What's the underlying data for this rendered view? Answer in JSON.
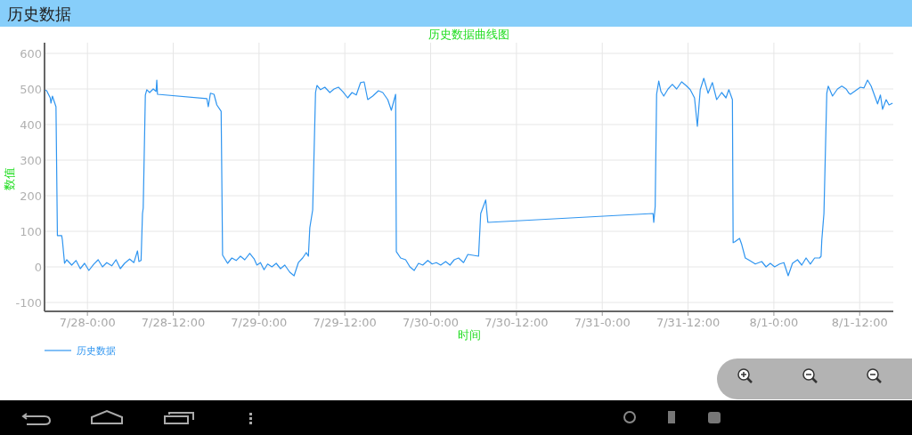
{
  "chart_data": {
    "type": "line",
    "title": "历史数据曲线图",
    "xlabel": "时间",
    "ylabel": "数值",
    "annotations": [
      "历史数据"
    ],
    "xlim": [
      "--07-27T18:00",
      "--08-01T16:42"
    ],
    "ylim": [
      -125,
      630
    ],
    "xticks": [
      {
        "value": "--07-28T00:00",
        "label": "7/28-0:00"
      },
      {
        "value": "--07-28T12:00",
        "label": "7/28-12:00"
      },
      {
        "value": "--07-29T00:00",
        "label": "7/29-0:00"
      },
      {
        "value": "--07-29T12:00",
        "label": "7/29-12:00"
      },
      {
        "value": "--07-30T00:00",
        "label": "7/30-0:00"
      },
      {
        "value": "--07-30T12:00",
        "label": "7/30-12:00"
      },
      {
        "value": "--07-31T00:00",
        "label": "7/31-0:00"
      },
      {
        "value": "--07-31T12:00",
        "label": "7/31-12:00"
      },
      {
        "value": "--08-01T00:00",
        "label": "8/1-0:00"
      },
      {
        "value": "--08-01T12:00",
        "label": "8/1-12:00"
      }
    ],
    "yticks": [
      -100,
      0,
      100,
      200,
      300,
      400,
      500,
      600
    ],
    "grid": true,
    "legend": "bottom left",
    "series": [
      {
        "name": "历史数据",
        "color": "#2f95f0",
        "x": [
          "--07-27T18:06",
          "--07-27T18:18",
          "--07-27T18:48",
          "--07-27T18:54",
          "--07-27T19:06",
          "--07-27T19:36",
          "--07-27T19:48",
          "--07-27T20:24",
          "--07-27T20:30",
          "--07-27T20:48",
          "--07-27T21:06",
          "--07-27T21:48",
          "--07-27T22:24",
          "--07-27T23:00",
          "--07-27T23:36",
          "--07-28T00:12",
          "--07-28T00:54",
          "--07-28T01:30",
          "--07-28T02:06",
          "--07-28T02:42",
          "--07-28T03:24",
          "--07-28T04:00",
          "--07-28T04:36",
          "--07-28T05:12",
          "--07-28T05:54",
          "--07-28T06:30",
          "--07-28T07:00",
          "--07-28T07:12",
          "--07-28T07:30",
          "--07-28T07:42",
          "--07-28T07:48",
          "--07-28T08:06",
          "--07-28T08:18",
          "--07-28T08:42",
          "--07-28T09:12",
          "--07-28T09:36",
          "--07-28T09:42",
          "--07-28T09:48",
          "--07-28T16:42",
          "--07-28T16:54",
          "--07-28T17:12",
          "--07-28T17:42",
          "--07-28T18:06",
          "--07-28T18:42",
          "--07-28T18:54",
          "--07-28T19:12",
          "--07-28T19:36",
          "--07-28T20:12",
          "--07-28T20:48",
          "--07-28T21:24",
          "--07-28T22:00",
          "--07-28T22:42",
          "--07-28T23:18",
          "--07-28T23:42",
          "--07-29T00:12",
          "--07-29T00:42",
          "--07-29T01:12",
          "--07-29T01:48",
          "--07-29T02:24",
          "--07-29T03:00",
          "--07-29T03:36",
          "--07-29T04:18",
          "--07-29T04:54",
          "--07-29T05:30",
          "--07-29T06:06",
          "--07-29T06:36",
          "--07-29T06:54",
          "--07-29T07:06",
          "--07-29T07:30",
          "--07-29T07:54",
          "--07-29T08:06",
          "--07-29T08:36",
          "--07-29T09:12",
          "--07-29T09:54",
          "--07-29T10:30",
          "--07-29T11:06",
          "--07-29T11:42",
          "--07-29T12:24",
          "--07-29T13:00",
          "--07-29T13:36",
          "--07-29T14:12",
          "--07-29T14:42",
          "--07-29T15:12",
          "--07-29T15:54",
          "--07-29T16:42",
          "--07-29T17:18",
          "--07-29T18:00",
          "--07-29T18:30",
          "--07-29T19:06",
          "--07-29T19:12",
          "--07-29T19:48",
          "--07-29T20:30",
          "--07-29T21:06",
          "--07-29T21:42",
          "--07-29T22:18",
          "--07-29T22:54",
          "--07-29T23:36",
          "--07-30T00:12",
          "--07-30T00:48",
          "--07-30T01:24",
          "--07-30T02:06",
          "--07-30T02:42",
          "--07-30T03:18",
          "--07-30T03:54",
          "--07-30T04:36",
          "--07-30T05:12",
          "--07-30T06:42",
          "--07-30T07:00",
          "--07-30T07:42",
          "--07-30T08:00",
          "--07-31T07:06",
          "--07-31T07:12",
          "--07-31T07:24",
          "--07-31T07:36",
          "--07-31T07:54",
          "--07-31T08:12",
          "--07-31T08:36",
          "--07-31T09:12",
          "--07-31T09:48",
          "--07-31T10:24",
          "--07-31T11:06",
          "--07-31T11:42",
          "--07-31T12:18",
          "--07-31T12:54",
          "--07-31T13:18",
          "--07-31T13:42",
          "--07-31T14:12",
          "--07-31T14:48",
          "--07-31T15:24",
          "--07-31T16:00",
          "--07-31T16:42",
          "--07-31T17:18",
          "--07-31T17:42",
          "--07-31T18:12",
          "--07-31T18:18",
          "--07-31T18:30",
          "--07-31T19:12",
          "--07-31T19:30",
          "--07-31T20:00",
          "--07-31T20:36",
          "--07-31T21:24",
          "--07-31T22:18",
          "--07-31T22:54",
          "--07-31T23:30",
          "--08-01T00:06",
          "--08-01T00:48",
          "--08-01T01:24",
          "--08-01T02:00",
          "--08-01T02:36",
          "--08-01T03:18",
          "--08-01T03:54",
          "--08-01T04:30",
          "--08-01T05:06",
          "--08-01T05:42",
          "--08-01T06:24",
          "--08-01T06:36",
          "--08-01T06:42",
          "--08-01T07:00",
          "--08-01T07:24",
          "--08-01T07:36",
          "--08-01T08:12",
          "--08-01T08:54",
          "--08-01T09:30",
          "--08-01T10:06",
          "--08-01T10:30",
          "--08-01T10:42",
          "--08-01T12:06",
          "--08-01T12:36",
          "--08-01T13:06",
          "--08-01T13:36",
          "--08-01T14:12",
          "--08-01T14:30",
          "--08-01T14:54",
          "--08-01T15:12",
          "--08-01T15:42",
          "--08-01T16:06",
          "--08-01T16:36"
        ],
        "values": [
          497,
          495,
          475,
          460,
          480,
          450,
          88,
          88,
          75,
          10,
          20,
          5,
          18,
          -5,
          10,
          -10,
          8,
          20,
          0,
          12,
          3,
          20,
          -5,
          10,
          22,
          12,
          45,
          15,
          18,
          150,
          165,
          483,
          498,
          490,
          500,
          493,
          525,
          485,
          473,
          450,
          488,
          485,
          455,
          437,
          33,
          23,
          10,
          25,
          18,
          30,
          20,
          38,
          23,
          5,
          12,
          -8,
          8,
          0,
          10,
          -5,
          5,
          -15,
          -25,
          12,
          25,
          40,
          30,
          110,
          160,
          490,
          510,
          498,
          505,
          490,
          500,
          505,
          493,
          475,
          490,
          483,
          518,
          520,
          470,
          480,
          495,
          490,
          470,
          440,
          485,
          43,
          25,
          20,
          0,
          -10,
          10,
          5,
          18,
          8,
          12,
          5,
          15,
          5,
          20,
          25,
          12,
          35,
          30,
          150,
          188,
          125,
          150,
          125,
          170,
          485,
          522,
          493,
          480,
          500,
          513,
          500,
          520,
          510,
          498,
          475,
          395,
          498,
          530,
          488,
          518,
          470,
          490,
          475,
          498,
          470,
          68,
          70,
          80,
          63,
          25,
          18,
          8,
          15,
          0,
          10,
          0,
          8,
          12,
          -25,
          10,
          20,
          5,
          25,
          8,
          25,
          25,
          30,
          75,
          150,
          488,
          508,
          480,
          500,
          508,
          500,
          488,
          485,
          505,
          503,
          525,
          508,
          475,
          458,
          483,
          443,
          470,
          455,
          460
        ]
      }
    ]
  }
}
